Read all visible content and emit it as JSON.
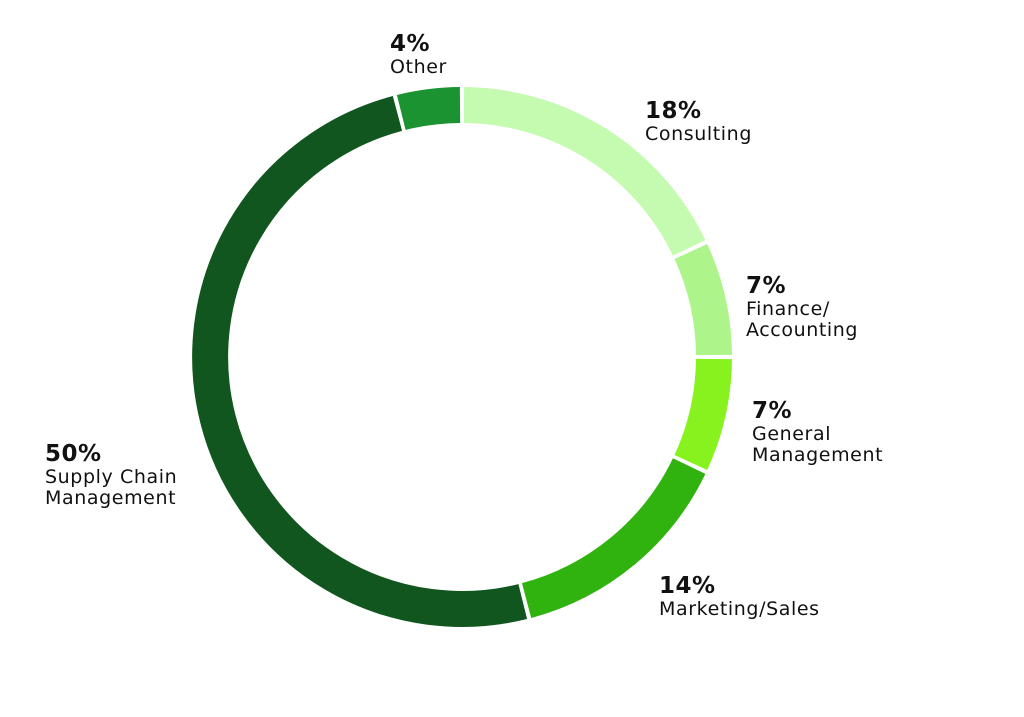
{
  "chart_data": {
    "type": "pie",
    "style": "donut",
    "start": "top",
    "direction": "clockwise",
    "title": "",
    "legend": "none",
    "slices": [
      {
        "label_lines": [
          "Consulting"
        ],
        "percent_text": "18%",
        "value": 18,
        "color": "#c5fbb0"
      },
      {
        "label_lines": [
          "Finance/",
          "Accounting"
        ],
        "percent_text": "7%",
        "value": 7,
        "color": "#adf58a"
      },
      {
        "label_lines": [
          "General",
          "Management"
        ],
        "percent_text": "7%",
        "value": 7,
        "color": "#88f21e"
      },
      {
        "label_lines": [
          "Marketing/Sales"
        ],
        "percent_text": "14%",
        "value": 14,
        "color": "#30b30e"
      },
      {
        "label_lines": [
          "Supply Chain",
          "Management"
        ],
        "percent_text": "50%",
        "value": 50,
        "color": "#10561e"
      },
      {
        "label_lines": [
          "Other"
        ],
        "percent_text": "4%",
        "value": 4,
        "color": "#1a9330"
      }
    ]
  }
}
